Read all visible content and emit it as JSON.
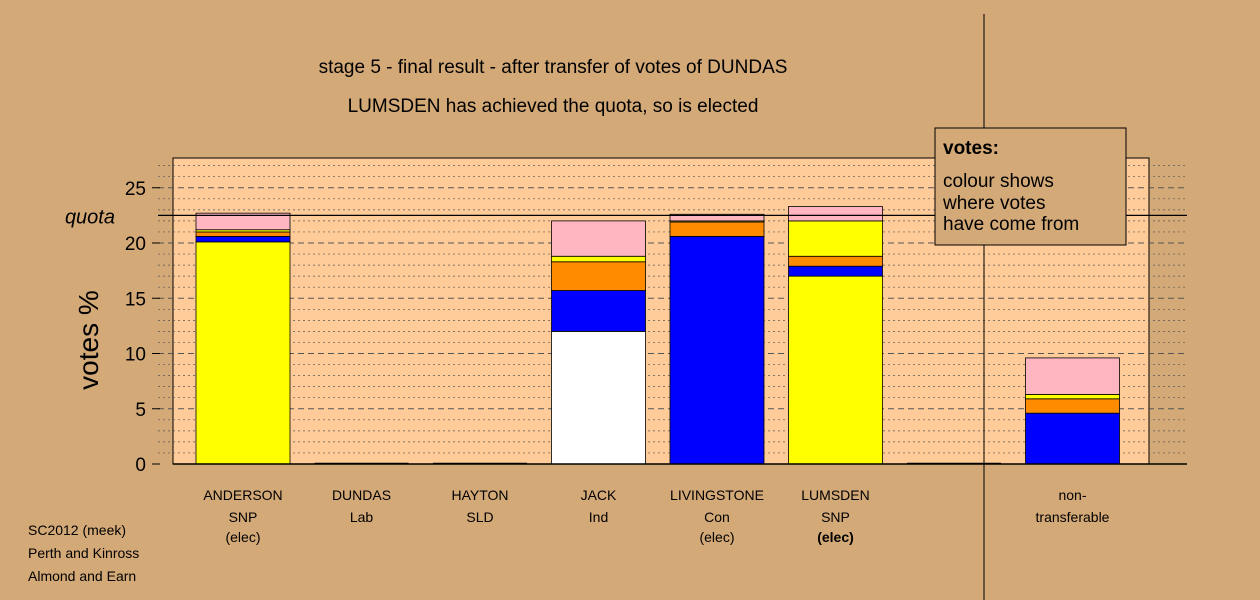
{
  "chart_data": {
    "type": "bar",
    "stacked": true,
    "title": "stage 5 - final result - after transfer of votes of DUNDAS",
    "subtitle": "LUMSDEN has achieved the quota, so is elected",
    "ylabel": "votes %",
    "ylim": [
      0,
      27.7
    ],
    "yticks": [
      0,
      5,
      10,
      15,
      20,
      25
    ],
    "quota": 22.5,
    "quota_label": "quota",
    "grid": "dotted horizontal every 1%, dashed every 5%",
    "candidates": [
      {
        "name": "ANDERSON",
        "party": "SNP",
        "status": "(elec)",
        "status_bold": false,
        "segments": [
          {
            "color": "#ffff00",
            "value": 20.1
          },
          {
            "color": "#0000ff",
            "value": 0.5
          },
          {
            "color": "#ff8c00",
            "value": 0.4
          },
          {
            "color": "#ffff00",
            "value": 0.2
          },
          {
            "color": "#ffb6c1",
            "value": 1.5
          }
        ]
      },
      {
        "name": "DUNDAS",
        "party": "Lab",
        "status": "",
        "status_bold": false,
        "segments": []
      },
      {
        "name": "HAYTON",
        "party": "SLD",
        "status": "",
        "status_bold": false,
        "segments": []
      },
      {
        "name": "JACK",
        "party": "Ind",
        "status": "",
        "status_bold": false,
        "segments": [
          {
            "color": "#ffffff",
            "value": 12.0
          },
          {
            "color": "#0000ff",
            "value": 3.7
          },
          {
            "color": "#ff8c00",
            "value": 2.6
          },
          {
            "color": "#ffff00",
            "value": 0.5
          },
          {
            "color": "#ffb6c1",
            "value": 3.2
          }
        ]
      },
      {
        "name": "LIVINGSTONE",
        "party": "Con",
        "status": "(elec)",
        "status_bold": false,
        "segments": [
          {
            "color": "#0000ff",
            "value": 20.6
          },
          {
            "color": "#ff8c00",
            "value": 1.3
          },
          {
            "color": "#ffff00",
            "value": 0.1
          },
          {
            "color": "#ffb6c1",
            "value": 0.6
          }
        ]
      },
      {
        "name": "LUMSDEN",
        "party": "SNP",
        "status": "(elec)",
        "status_bold": true,
        "segments": [
          {
            "color": "#ffff00",
            "value": 17.0
          },
          {
            "color": "#0000ff",
            "value": 0.9
          },
          {
            "color": "#ff8c00",
            "value": 0.9
          },
          {
            "color": "#ffff00",
            "value": 3.2
          },
          {
            "color": "#ffb6c1",
            "value": 1.3
          }
        ]
      },
      {
        "name": "",
        "party": "",
        "status": "",
        "status_bold": false,
        "segments": []
      },
      {
        "name": "non-",
        "party": "transferable",
        "status": "",
        "status_bold": false,
        "segments": [
          {
            "color": "#0000ff",
            "value": 4.6
          },
          {
            "color": "#ff8c00",
            "value": 1.3
          },
          {
            "color": "#ffff00",
            "value": 0.4
          },
          {
            "color": "#ffb6c1",
            "value": 3.3
          }
        ]
      }
    ]
  },
  "legend": {
    "title": "votes:",
    "lines": [
      "colour shows",
      "where votes",
      "have come from"
    ]
  },
  "footer": {
    "lines": [
      "SC2012 (meek)",
      "Perth and Kinross",
      "Almond and Earn"
    ]
  },
  "colors": {
    "background": "#d4a978",
    "plot_area": "#ffcc99",
    "snp": "#ffff00",
    "con": "#0000ff",
    "lab": "#ff8c00",
    "sld": "#ffb6c1",
    "ind": "#ffffff"
  }
}
